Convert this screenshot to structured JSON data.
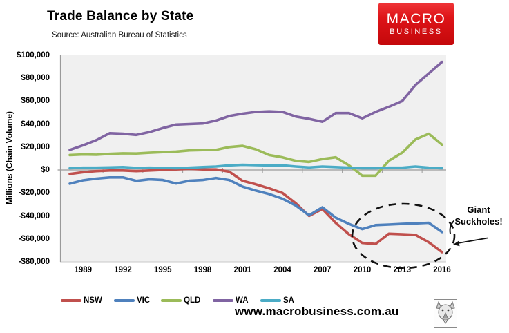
{
  "header": {
    "title": "Trade Balance by State",
    "source": "Source: Australian Bureau of Statistics"
  },
  "logo": {
    "line1": "MACRO",
    "line2": "BUSINESS",
    "bg_color": "#D6090C",
    "text_color": "#FFFFFF"
  },
  "annotation": {
    "line1": "Giant",
    "line2": "Suckholes!"
  },
  "footer": {
    "url": "www.macrobusiness.com.au"
  },
  "wolf_logo": {
    "name": "macrobusiness-wolf-emblem"
  },
  "colors": {
    "plot_background": "#F0F0F0",
    "axis_line": "#9A9A9A",
    "plot_border": "#C9C9C9",
    "annotation": "#111111"
  },
  "chart_data": {
    "type": "line",
    "title": "Trade Balance by State",
    "xlabel": "",
    "ylabel": "Millions (Chain Volume)",
    "ylim": [
      -80000,
      100000
    ],
    "y_tick_step": 20000,
    "grid": false,
    "legend_position": "bottom",
    "y_tick_labels": [
      "$100,000",
      "$80,000",
      "$60,000",
      "$40,000",
      "$20,000",
      "$0",
      "-$20,000",
      "-$40,000",
      "-$60,000",
      "-$80,000"
    ],
    "x_tick_labels": [
      "1989",
      "1992",
      "1995",
      "1998",
      "2001",
      "2004",
      "2007",
      "2010",
      "2013",
      "2016"
    ],
    "x_tick_years": [
      1989,
      1992,
      1995,
      1998,
      2001,
      2004,
      2007,
      2010,
      2013,
      2016
    ],
    "years": [
      1988,
      1989,
      1990,
      1991,
      1992,
      1993,
      1994,
      1995,
      1996,
      1997,
      1998,
      1999,
      2000,
      2001,
      2002,
      2003,
      2004,
      2005,
      2006,
      2007,
      2008,
      2009,
      2010,
      2011,
      2012,
      2013,
      2014,
      2015,
      2016
    ],
    "series": [
      {
        "name": "NSW",
        "color": "#C0504D",
        "values": [
          -3500,
          -2000,
          -1000,
          -500,
          -500,
          -1000,
          -500,
          0,
          500,
          1000,
          500,
          500,
          -1500,
          -9500,
          -12500,
          -16000,
          -20000,
          -29000,
          -40000,
          -34000,
          -46000,
          -56000,
          -63500,
          -64500,
          -55500,
          -56000,
          -56500,
          -63000,
          -71500
        ]
      },
      {
        "name": "VIC",
        "color": "#4F81BD",
        "values": [
          -12000,
          -9000,
          -7500,
          -6500,
          -6500,
          -9500,
          -8200,
          -8800,
          -11800,
          -9400,
          -8800,
          -7000,
          -8800,
          -14500,
          -18000,
          -21000,
          -25000,
          -31000,
          -39500,
          -32500,
          -41500,
          -47000,
          -51500,
          -48000,
          -47500,
          -47000,
          -46500,
          -46000,
          -54000
        ]
      },
      {
        "name": "QLD",
        "color": "#9BBB59",
        "values": [
          13000,
          13500,
          13300,
          14000,
          14500,
          14300,
          15000,
          15500,
          16000,
          17000,
          17300,
          17500,
          20000,
          21000,
          18000,
          13000,
          11000,
          8000,
          7000,
          9500,
          11000,
          4000,
          -5000,
          -5000,
          8000,
          15000,
          26500,
          31500,
          22000
        ]
      },
      {
        "name": "WA",
        "color": "#8064A2",
        "values": [
          17500,
          21500,
          26000,
          32000,
          31500,
          30500,
          33000,
          36500,
          39500,
          40000,
          40500,
          43000,
          47000,
          49000,
          50500,
          51000,
          50500,
          46500,
          44500,
          42000,
          49500,
          49500,
          45000,
          50500,
          55000,
          60000,
          74000,
          84000,
          94000
        ]
      },
      {
        "name": "SA",
        "color": "#4BACC6",
        "values": [
          1500,
          2000,
          2000,
          2200,
          2500,
          1800,
          2000,
          1800,
          1500,
          2000,
          2500,
          3000,
          4000,
          4500,
          4200,
          4000,
          4000,
          3000,
          2200,
          3000,
          2500,
          2000,
          1500,
          1500,
          2000,
          2000,
          3000,
          2000,
          1500
        ]
      }
    ]
  }
}
